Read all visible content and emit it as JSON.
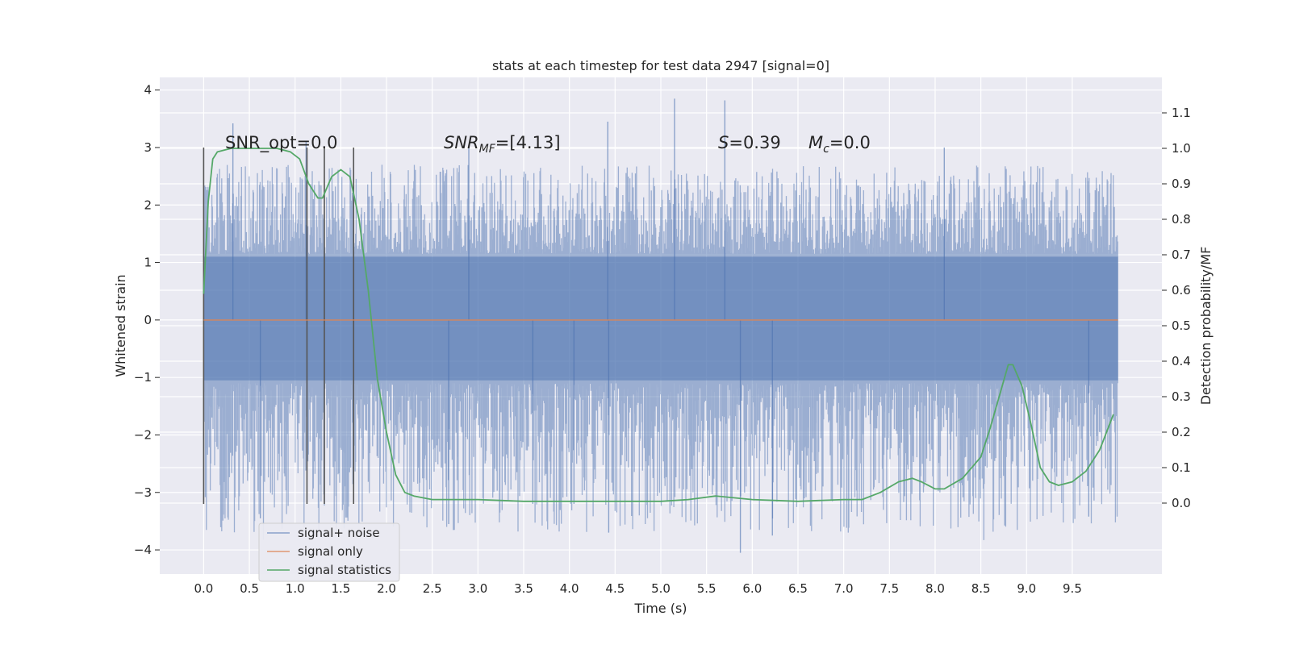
{
  "chart_data": {
    "type": "line",
    "title": "stats at each timestep for test data 2947 [signal=0]",
    "xlabel": "Time (s)",
    "ylabel_left": "Whitened strain",
    "ylabel_right": "Detection probability/MF",
    "xlim": [
      -0.48,
      10.48
    ],
    "ylim_left": [
      -4.42,
      4.22
    ],
    "ylim_right": [
      -0.2,
      1.2
    ],
    "x_ticks": [
      "0.0",
      "0.5",
      "1.0",
      "1.5",
      "2.0",
      "2.5",
      "3.0",
      "3.5",
      "4.0",
      "4.5",
      "5.0",
      "5.5",
      "6.0",
      "6.5",
      "7.0",
      "7.5",
      "8.0",
      "8.5",
      "9.0",
      "9.5"
    ],
    "left_ticks": [
      "4",
      "3",
      "2",
      "1",
      "0",
      "−1",
      "−2",
      "−3",
      "−4"
    ],
    "right_ticks": [
      "1.1",
      "1.0",
      "0.9",
      "0.8",
      "0.7",
      "0.6",
      "0.5",
      "0.4",
      "0.3",
      "0.2",
      "0.1",
      "0.0"
    ],
    "grid": true,
    "legend_position": "lower-left",
    "annotations": {
      "snr_opt": "SNR_opt=0.0",
      "snr_mf_main": "SNR",
      "snr_mf_sub": "MF",
      "snr_mf_value": "=[4.13]",
      "s_sym": "S",
      "s_value": "=0.39",
      "mc_sym": "M",
      "mc_sub": "c",
      "mc_value": "=0.0"
    },
    "vertical_markers": [
      0.0,
      1.13,
      1.32,
      1.64
    ],
    "marker_range_left": [
      -3.2,
      3.0
    ],
    "series": [
      {
        "name": "signal+ noise",
        "color": "#4c72b0",
        "axis": "left",
        "x_range": [
          0.0,
          10.0
        ],
        "band_low": -1.1,
        "band_high": 1.15,
        "typical_peak": 2.3,
        "spikes_up": [
          [
            0.32,
            3.42
          ],
          [
            4.42,
            3.45
          ],
          [
            5.15,
            3.85
          ],
          [
            5.7,
            3.82
          ],
          [
            1.12,
            3.1
          ],
          [
            2.9,
            3.05
          ],
          [
            8.1,
            3.0
          ]
        ],
        "spikes_down": [
          [
            0.62,
            -3.45
          ],
          [
            2.68,
            -3.55
          ],
          [
            4.43,
            -3.7
          ],
          [
            5.87,
            -4.05
          ],
          [
            6.22,
            -3.75
          ],
          [
            9.68,
            -3.42
          ],
          [
            3.6,
            -3.2
          ],
          [
            4.05,
            -3.2
          ]
        ]
      },
      {
        "name": "signal only",
        "color": "#dd8452",
        "axis": "left",
        "x": [
          0.0,
          10.0
        ],
        "y": [
          0.0,
          0.0
        ]
      },
      {
        "name": "signal statistics",
        "color": "#55a868",
        "axis": "right",
        "x": [
          0.0,
          0.05,
          0.1,
          0.15,
          0.3,
          0.5,
          0.8,
          0.95,
          1.05,
          1.15,
          1.25,
          1.3,
          1.4,
          1.5,
          1.6,
          1.7,
          1.8,
          1.9,
          2.0,
          2.1,
          2.2,
          2.3,
          2.5,
          3.0,
          3.5,
          4.0,
          4.5,
          5.0,
          5.3,
          5.6,
          6.0,
          6.5,
          7.0,
          7.2,
          7.4,
          7.6,
          7.75,
          7.85,
          8.0,
          8.1,
          8.3,
          8.5,
          8.6,
          8.7,
          8.8,
          8.85,
          8.95,
          9.05,
          9.15,
          9.25,
          9.35,
          9.5,
          9.65,
          9.8,
          9.95
        ],
        "y": [
          0.59,
          0.85,
          0.97,
          0.99,
          1.0,
          1.0,
          1.0,
          0.99,
          0.97,
          0.9,
          0.86,
          0.86,
          0.92,
          0.94,
          0.92,
          0.8,
          0.6,
          0.35,
          0.2,
          0.08,
          0.03,
          0.02,
          0.01,
          0.01,
          0.005,
          0.005,
          0.005,
          0.005,
          0.01,
          0.02,
          0.01,
          0.005,
          0.01,
          0.01,
          0.03,
          0.06,
          0.07,
          0.06,
          0.04,
          0.04,
          0.07,
          0.13,
          0.21,
          0.3,
          0.39,
          0.39,
          0.33,
          0.22,
          0.1,
          0.06,
          0.05,
          0.06,
          0.09,
          0.15,
          0.25
        ]
      }
    ]
  }
}
